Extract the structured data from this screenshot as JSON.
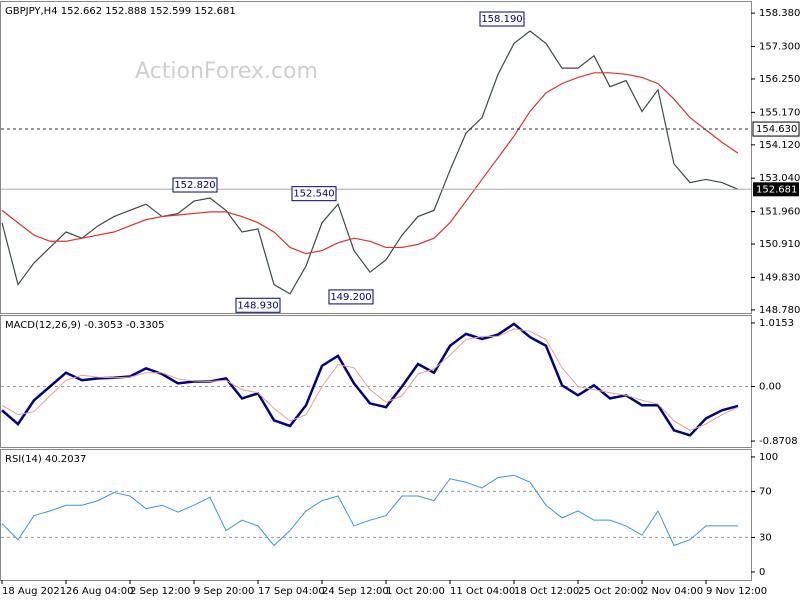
{
  "chart_data": [
    {
      "type": "line",
      "title": "GBPJPY,H4  152.662 152.888 152.599 152.681",
      "watermark": "ActionForex.com",
      "ylim": [
        148.68,
        158.74
      ],
      "yticks": [
        {
          "value": 158.38,
          "label": "158.380"
        },
        {
          "value": 157.3,
          "label": "157.300"
        },
        {
          "value": 156.25,
          "label": "156.250"
        },
        {
          "value": 155.17,
          "label": "155.170"
        },
        {
          "value": 154.12,
          "label": "154.120"
        },
        {
          "value": 153.04,
          "label": "153.040"
        },
        {
          "value": 151.96,
          "label": "151.960"
        },
        {
          "value": 150.91,
          "label": "150.910"
        },
        {
          "value": 149.83,
          "label": "149.830"
        },
        {
          "value": 148.78,
          "label": "148.780"
        }
      ],
      "level": {
        "value": 154.63,
        "label": "154.630"
      },
      "current_price": 152.681,
      "annotations": [
        {
          "value": 152.82,
          "label": "152.820"
        },
        {
          "value": 152.54,
          "label": "152.540"
        },
        {
          "value": 148.93,
          "label": "148.930"
        },
        {
          "value": 149.2,
          "label": "149.200"
        },
        {
          "value": 158.19,
          "label": "158.190"
        }
      ],
      "series": [
        {
          "color": "#3c4a4a",
          "values": [
            151.6,
            149.6,
            150.3,
            150.8,
            151.3,
            151.1,
            151.5,
            151.8,
            152.0,
            152.2,
            151.8,
            151.9,
            152.3,
            152.4,
            152.0,
            151.3,
            151.4,
            149.6,
            149.3,
            150.2,
            151.6,
            152.2,
            150.7,
            150.0,
            150.4,
            151.2,
            151.8,
            152.0,
            153.3,
            154.5,
            155.0,
            156.4,
            157.4,
            157.8,
            157.4,
            156.6,
            156.6,
            157.0,
            156.0,
            156.2,
            155.2,
            155.9,
            153.5,
            152.9,
            153.0,
            152.9,
            152.681
          ]
        },
        {
          "color": "#e03030",
          "values": [
            152.0,
            151.6,
            151.2,
            151.0,
            151.0,
            151.1,
            151.2,
            151.3,
            151.5,
            151.7,
            151.8,
            151.85,
            151.9,
            151.95,
            151.95,
            151.8,
            151.6,
            151.3,
            150.8,
            150.6,
            150.7,
            150.95,
            151.1,
            151.0,
            150.8,
            150.8,
            150.9,
            151.1,
            151.6,
            152.3,
            153.0,
            153.7,
            154.4,
            155.2,
            155.8,
            156.1,
            156.3,
            156.45,
            156.45,
            156.4,
            156.3,
            156.1,
            155.6,
            155.0,
            154.6,
            154.2,
            153.85
          ]
        }
      ]
    },
    {
      "type": "line",
      "title": "MACD(12,26,9) -0.3053 -0.3305",
      "ylim": [
        -0.966,
        1.126
      ],
      "yticks": [
        1.0153,
        {
          "value": 0,
          "label": "0.00"
        },
        -0.8708
      ],
      "series": [
        {
          "color": "#000080",
          "values": [
            -0.38,
            -0.6,
            -0.22,
            0,
            0.22,
            0.1,
            0.13,
            0.14,
            0.16,
            0.29,
            0.2,
            0.05,
            0.08,
            0.08,
            0.13,
            -0.19,
            -0.11,
            -0.54,
            -0.63,
            -0.3,
            0.33,
            0.49,
            0.05,
            -0.27,
            -0.33,
            0,
            0.36,
            0.22,
            0.65,
            0.84,
            0.76,
            0.83,
            1.0,
            0.79,
            0.65,
            0.02,
            -0.14,
            0.02,
            -0.19,
            -0.14,
            -0.3,
            -0.3,
            -0.7,
            -0.78,
            -0.51,
            -0.38,
            -0.31
          ]
        },
        {
          "color": "#e8a090",
          "values": [
            -0.3,
            -0.45,
            -0.4,
            -0.15,
            0.1,
            0.18,
            0.15,
            0.14,
            0.15,
            0.22,
            0.22,
            0.12,
            0.09,
            0.08,
            0.1,
            -0.05,
            -0.1,
            -0.35,
            -0.55,
            -0.45,
            0,
            0.35,
            0.3,
            -0.05,
            -0.25,
            -0.15,
            0.2,
            0.28,
            0.5,
            0.75,
            0.8,
            0.8,
            0.92,
            0.88,
            0.75,
            0.3,
            0,
            -0.05,
            -0.1,
            -0.14,
            -0.22,
            -0.28,
            -0.55,
            -0.7,
            -0.6,
            -0.45,
            -0.33
          ]
        }
      ]
    },
    {
      "type": "line",
      "title": "RSI(14) 40.2037",
      "ylim": [
        -7,
        106
      ],
      "yticks": [
        100,
        70,
        30,
        0
      ],
      "categories": [
        "18 Aug 2021",
        null,
        null,
        null,
        "26 Aug 04:00",
        null,
        null,
        null,
        "2 Sep 12:00",
        null,
        null,
        null,
        "9 Sep 20:00",
        null,
        null,
        null,
        "17 Sep 04:00",
        null,
        null,
        null,
        "24 Sep 12:00",
        null,
        null,
        null,
        "1 Oct 20:00",
        null,
        null,
        null,
        "11 Oct 04:00",
        null,
        null,
        null,
        "18 Oct 12:00",
        null,
        null,
        null,
        "25 Oct 20:00",
        null,
        null,
        null,
        "2 Nov 04:00",
        null,
        null,
        null,
        "9 Nov 12:00",
        null,
        null
      ],
      "series": [
        {
          "color": "#3399dd",
          "values": [
            42,
            28,
            49,
            53,
            58,
            58,
            62,
            69,
            66,
            55,
            58,
            52,
            58,
            65,
            36,
            45,
            40,
            23,
            36,
            53,
            62,
            66,
            40,
            45,
            49,
            66,
            66,
            62,
            81,
            78,
            73,
            82,
            84,
            78,
            58,
            47,
            53,
            45,
            45,
            40,
            32,
            53,
            23,
            28,
            40,
            40,
            40
          ]
        }
      ]
    }
  ]
}
